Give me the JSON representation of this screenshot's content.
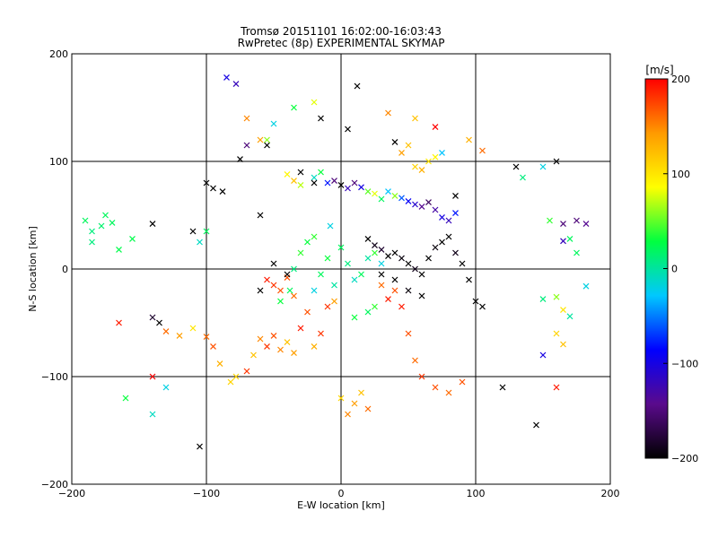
{
  "chart_data": {
    "type": "scatter",
    "title": "Tromsø 20151101 16:02:00-16:03:43",
    "subtitle": "RwPretec (8p) EXPERIMENTAL SKYMAP",
    "xlabel": "E-W location [km]",
    "ylabel": "N-S location [km]",
    "xlim": [
      -200,
      200
    ],
    "ylim": [
      -200,
      200
    ],
    "xticks": [
      -200,
      -100,
      0,
      100,
      200
    ],
    "yticks": [
      -200,
      -100,
      0,
      100,
      200
    ],
    "grid_lines_x": [
      -100,
      0,
      100
    ],
    "grid_lines_y": [
      -100,
      0,
      100
    ],
    "colorbar": {
      "label": "[m/s]",
      "min": -200,
      "max": 200,
      "ticks": [
        200,
        100,
        0,
        -100,
        -200
      ],
      "colors": [
        "#000000",
        "#5a0a8c",
        "#0000ff",
        "#00c8ff",
        "#00ff40",
        "#ffff00",
        "#ff9a00",
        "#ff0000"
      ]
    },
    "markers": {
      "large": "x",
      "small": "point"
    },
    "series": [
      {
        "values": [
          [
            -190,
            45,
            20
          ],
          [
            -185,
            35,
            10
          ],
          [
            -178,
            40,
            15
          ],
          [
            -170,
            43,
            20
          ],
          [
            -165,
            18,
            25
          ],
          [
            -155,
            28,
            25
          ],
          [
            -140,
            -45,
            -180
          ],
          [
            -135,
            -50,
            -200
          ],
          [
            -130,
            -58,
            160
          ],
          [
            -120,
            -62,
            140
          ],
          [
            -110,
            -55,
            100
          ],
          [
            -100,
            -63,
            160
          ],
          [
            -95,
            -72,
            170
          ],
          [
            -90,
            -88,
            130
          ],
          [
            -82,
            -105,
            110
          ],
          [
            -78,
            -100,
            110
          ],
          [
            -70,
            -95,
            180
          ],
          [
            -65,
            -80,
            120
          ],
          [
            -60,
            -65,
            150
          ],
          [
            -55,
            -72,
            180
          ],
          [
            -50,
            -62,
            170
          ],
          [
            -45,
            -75,
            150
          ],
          [
            -40,
            -68,
            120
          ],
          [
            -35,
            -78,
            140
          ],
          [
            -30,
            -55,
            190
          ],
          [
            -25,
            -40,
            170
          ],
          [
            -20,
            -72,
            130
          ],
          [
            -15,
            -60,
            180
          ],
          [
            -10,
            -35,
            180
          ],
          [
            -5,
            -30,
            140
          ],
          [
            -55,
            -10,
            190
          ],
          [
            -50,
            -15,
            180
          ],
          [
            -45,
            -20,
            170
          ],
          [
            -40,
            -8,
            170
          ],
          [
            -35,
            -25,
            160
          ],
          [
            0,
            -120,
            110
          ],
          [
            5,
            -135,
            150
          ],
          [
            10,
            -125,
            140
          ],
          [
            15,
            -115,
            120
          ],
          [
            20,
            -130,
            160
          ],
          [
            35,
            -28,
            190
          ],
          [
            40,
            -20,
            170
          ],
          [
            30,
            -15,
            160
          ],
          [
            45,
            -35,
            190
          ],
          [
            50,
            -60,
            170
          ],
          [
            55,
            -85,
            160
          ],
          [
            60,
            -100,
            180
          ],
          [
            70,
            -110,
            170
          ],
          [
            80,
            -115,
            160
          ],
          [
            90,
            -105,
            170
          ],
          [
            160,
            -110,
            190
          ]
        ]
      },
      {
        "values": [
          [
            -30,
            15,
            40
          ],
          [
            -20,
            -20,
            -20
          ],
          [
            -15,
            -5,
            20
          ],
          [
            -10,
            10,
            30
          ],
          [
            -5,
            -15,
            0
          ],
          [
            0,
            20,
            20
          ],
          [
            5,
            5,
            10
          ],
          [
            10,
            -10,
            -10
          ],
          [
            15,
            -5,
            20
          ],
          [
            20,
            10,
            0
          ],
          [
            25,
            15,
            40
          ],
          [
            30,
            5,
            -20
          ],
          [
            -45,
            -30,
            30
          ],
          [
            -38,
            -20,
            20
          ],
          [
            -35,
            0,
            10
          ],
          [
            -25,
            25,
            30
          ],
          [
            -20,
            30,
            40
          ],
          [
            -8,
            40,
            -20
          ],
          [
            10,
            -45,
            30
          ],
          [
            20,
            -40,
            20
          ],
          [
            25,
            -35,
            40
          ]
        ]
      },
      {
        "values": [
          [
            -40,
            88,
            90
          ],
          [
            -35,
            82,
            120
          ],
          [
            -30,
            78,
            70
          ],
          [
            -20,
            85,
            -10
          ],
          [
            -15,
            90,
            30
          ],
          [
            -10,
            80,
            -80
          ],
          [
            -5,
            82,
            -150
          ],
          [
            0,
            78,
            -200
          ],
          [
            5,
            75,
            -120
          ],
          [
            10,
            80,
            -150
          ],
          [
            15,
            76,
            -100
          ],
          [
            20,
            72,
            50
          ],
          [
            25,
            70,
            80
          ],
          [
            30,
            65,
            20
          ],
          [
            35,
            72,
            -30
          ],
          [
            40,
            68,
            60
          ],
          [
            45,
            66,
            -60
          ],
          [
            50,
            63,
            -90
          ],
          [
            55,
            60,
            -110
          ],
          [
            60,
            58,
            -140
          ],
          [
            65,
            62,
            -160
          ],
          [
            70,
            55,
            -130
          ],
          [
            75,
            48,
            -100
          ],
          [
            80,
            45,
            -120
          ],
          [
            85,
            52,
            -80
          ],
          [
            55,
            95,
            110
          ],
          [
            60,
            92,
            130
          ],
          [
            65,
            100,
            100
          ],
          [
            70,
            104,
            90
          ],
          [
            75,
            108,
            -30
          ],
          [
            45,
            108,
            140
          ],
          [
            50,
            115,
            120
          ]
        ]
      },
      {
        "values": [
          [
            20,
            28,
            -200
          ],
          [
            25,
            22,
            -190
          ],
          [
            30,
            18,
            -180
          ],
          [
            35,
            12,
            -200
          ],
          [
            40,
            15,
            -200
          ],
          [
            45,
            10,
            -195
          ],
          [
            50,
            5,
            -200
          ],
          [
            55,
            0,
            -190
          ],
          [
            60,
            -5,
            -200
          ],
          [
            65,
            10,
            -200
          ],
          [
            70,
            20,
            -195
          ],
          [
            75,
            25,
            -200
          ],
          [
            80,
            30,
            -200
          ],
          [
            85,
            15,
            -190
          ],
          [
            90,
            5,
            -200
          ],
          [
            95,
            -10,
            -200
          ],
          [
            100,
            -30,
            -200
          ],
          [
            30,
            -5,
            -200
          ],
          [
            40,
            -10,
            -200
          ],
          [
            50,
            -20,
            -195
          ],
          [
            60,
            -25,
            -200
          ],
          [
            -40,
            -5,
            -200
          ],
          [
            -50,
            5,
            -200
          ],
          [
            -60,
            -20,
            -200
          ],
          [
            -20,
            80,
            -200
          ],
          [
            -30,
            90,
            -200
          ],
          [
            -60,
            50,
            -200
          ],
          [
            -100,
            80,
            -200
          ],
          [
            -110,
            35,
            -200
          ],
          [
            -95,
            75,
            -200
          ],
          [
            -88,
            72,
            -200
          ],
          [
            -75,
            102,
            -200
          ],
          [
            -55,
            115,
            -200
          ],
          [
            -15,
            140,
            -200
          ],
          [
            5,
            130,
            -200
          ],
          [
            12,
            170,
            -200
          ],
          [
            40,
            118,
            -200
          ],
          [
            85,
            68,
            -200
          ],
          [
            105,
            -35,
            -200
          ],
          [
            120,
            -110,
            -200
          ],
          [
            130,
            95,
            -200
          ],
          [
            160,
            100,
            -200
          ],
          [
            145,
            -145,
            -200
          ],
          [
            -105,
            -165,
            -200
          ],
          [
            -140,
            42,
            -200
          ]
        ]
      },
      {
        "values": [
          [
            -85,
            178,
            -100
          ],
          [
            -78,
            172,
            -120
          ],
          [
            -70,
            140,
            150
          ],
          [
            -60,
            120,
            140
          ],
          [
            -70,
            115,
            -150
          ],
          [
            -55,
            120,
            60
          ],
          [
            -50,
            135,
            -20
          ],
          [
            -35,
            150,
            30
          ],
          [
            -20,
            155,
            80
          ],
          [
            35,
            145,
            150
          ],
          [
            55,
            140,
            120
          ],
          [
            70,
            132,
            200
          ],
          [
            95,
            120,
            130
          ],
          [
            105,
            110,
            160
          ],
          [
            135,
            85,
            10
          ],
          [
            150,
            95,
            -20
          ],
          [
            155,
            45,
            40
          ],
          [
            165,
            42,
            -150
          ],
          [
            175,
            45,
            -150
          ],
          [
            182,
            42,
            -140
          ],
          [
            165,
            26,
            -120
          ],
          [
            170,
            28,
            20
          ],
          [
            175,
            15,
            20
          ],
          [
            182,
            -16,
            -20
          ],
          [
            150,
            -28,
            10
          ],
          [
            160,
            -26,
            60
          ],
          [
            165,
            -38,
            100
          ],
          [
            170,
            -44,
            0
          ],
          [
            160,
            -60,
            110
          ],
          [
            165,
            -70,
            120
          ],
          [
            150,
            -80,
            -100
          ],
          [
            -100,
            35,
            20
          ],
          [
            -105,
            25,
            -10
          ],
          [
            -140,
            -100,
            200
          ],
          [
            -130,
            -110,
            -20
          ],
          [
            -160,
            -120,
            30
          ],
          [
            -140,
            -135,
            -10
          ],
          [
            -165,
            -50,
            190
          ],
          [
            -175,
            50,
            20
          ],
          [
            -185,
            25,
            10
          ]
        ]
      }
    ]
  }
}
